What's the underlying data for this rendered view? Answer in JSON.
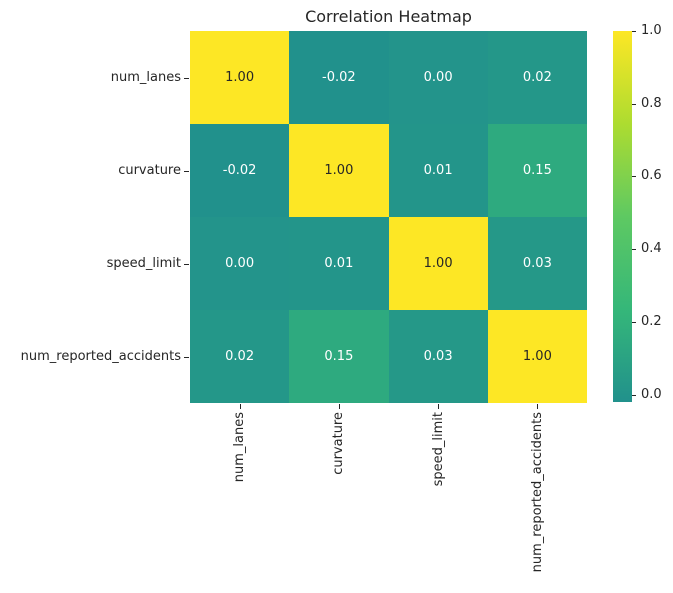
{
  "title": "Correlation Heatmap",
  "chart_data": {
    "type": "heatmap",
    "title": "Correlation Heatmap",
    "x_tick_labels": [
      "num_lanes",
      "curvature",
      "speed_limit",
      "num_reported_accidents"
    ],
    "y_tick_labels": [
      "num_lanes",
      "curvature",
      "speed_limit",
      "num_reported_accidents"
    ],
    "matrix": [
      [
        1.0,
        -0.02,
        0.0,
        0.02
      ],
      [
        -0.02,
        1.0,
        0.01,
        0.15
      ],
      [
        0.0,
        0.01,
        1.0,
        0.03
      ],
      [
        0.02,
        0.15,
        0.03,
        1.0
      ]
    ],
    "cell_labels": [
      [
        "1.00",
        "-0.02",
        "0.00",
        "0.02"
      ],
      [
        "-0.02",
        "1.00",
        "0.01",
        "0.15"
      ],
      [
        "0.00",
        "0.01",
        "1.00",
        "0.03"
      ],
      [
        "0.02",
        "0.15",
        "0.03",
        "1.00"
      ]
    ],
    "colormap": {
      "name": "viridis-upper",
      "gradient": [
        "#21918c",
        "#35b779",
        "#5ec962",
        "#addc30",
        "#fde725"
      ],
      "vmin": -0.02,
      "vmax": 1.0
    },
    "colorbar": {
      "tick_labels": [
        "1.0",
        "0.8",
        "0.6",
        "0.4",
        "0.2",
        "0.0"
      ],
      "tick_values": [
        1.0,
        0.8,
        0.6,
        0.4,
        0.2,
        0.0
      ]
    },
    "colors": {
      "background": "#ffffff",
      "axis_text": "#262626",
      "annotation_dark": "#262626",
      "annotation_light": "#ffffff",
      "tick_mark": "#262626"
    },
    "grid": false,
    "legend_position": "right-colorbar"
  }
}
